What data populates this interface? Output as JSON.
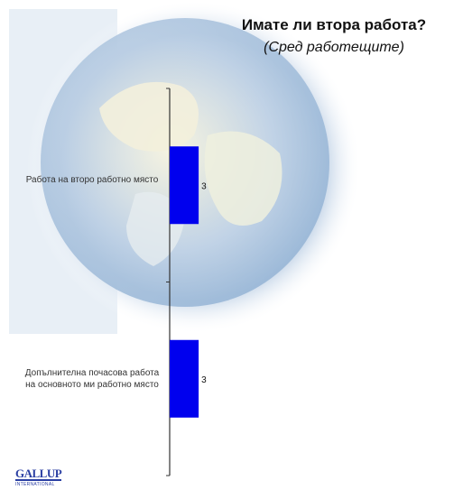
{
  "title": "Имате ли втора работа?",
  "subtitle": "(Сред работещите)",
  "logo": {
    "brand": "GALLUP",
    "sub": "INTERNATIONAL"
  },
  "colors": {
    "bar": "#0000ee",
    "axis": "#333333"
  },
  "chart_data": {
    "type": "bar",
    "orientation": "horizontal",
    "categories": [
      "Работа на второ работно място",
      "Допълнителна почасова работа на основното ми работно място"
    ],
    "values": [
      3,
      3
    ],
    "data_labels": [
      "3",
      "3"
    ],
    "xlim": [
      0,
      100
    ],
    "grid": false,
    "legend": "none"
  }
}
